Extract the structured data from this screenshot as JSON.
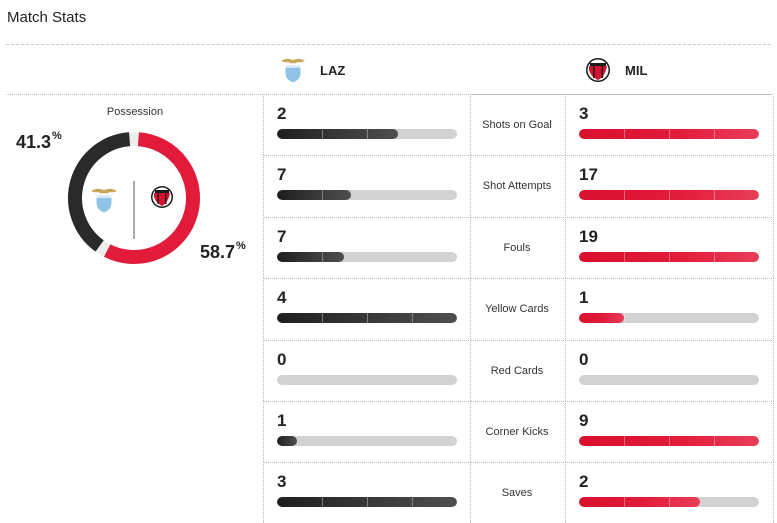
{
  "header": {
    "title": "Match Stats"
  },
  "teams": {
    "home": {
      "abbr": "LAZ",
      "crest_icon": "lazio-eagle-crest-icon",
      "bar_color": "#2a2a2a"
    },
    "away": {
      "abbr": "MIL",
      "crest_icon": "ac-milan-crest-icon",
      "bar_color": "#e21b3a"
    }
  },
  "possession": {
    "label": "Possession",
    "home_value": "41.3",
    "away_value": "58.7",
    "unit": "%",
    "home_fraction": 0.413,
    "away_fraction": 0.587
  },
  "stats": [
    {
      "label": "Shots on Goal",
      "home": "2",
      "away": "3",
      "home_fill": 0.67,
      "away_fill": 1.0
    },
    {
      "label": "Shot Attempts",
      "home": "7",
      "away": "17",
      "home_fill": 0.41,
      "away_fill": 1.0
    },
    {
      "label": "Fouls",
      "home": "7",
      "away": "19",
      "home_fill": 0.37,
      "away_fill": 1.0
    },
    {
      "label": "Yellow Cards",
      "home": "4",
      "away": "1",
      "home_fill": 1.0,
      "away_fill": 0.25
    },
    {
      "label": "Red Cards",
      "home": "0",
      "away": "0",
      "home_fill": 0.0,
      "away_fill": 0.0
    },
    {
      "label": "Corner Kicks",
      "home": "1",
      "away": "9",
      "home_fill": 0.11,
      "away_fill": 1.0
    },
    {
      "label": "Saves",
      "home": "3",
      "away": "2",
      "home_fill": 1.0,
      "away_fill": 0.67
    }
  ],
  "colors": {
    "home_bar": "#2a2a2a",
    "away_bar": "#e21b3a",
    "track": "#d2d2d2",
    "laz_crest": "#8fc4e6",
    "mil_crest": "#d6102e"
  }
}
